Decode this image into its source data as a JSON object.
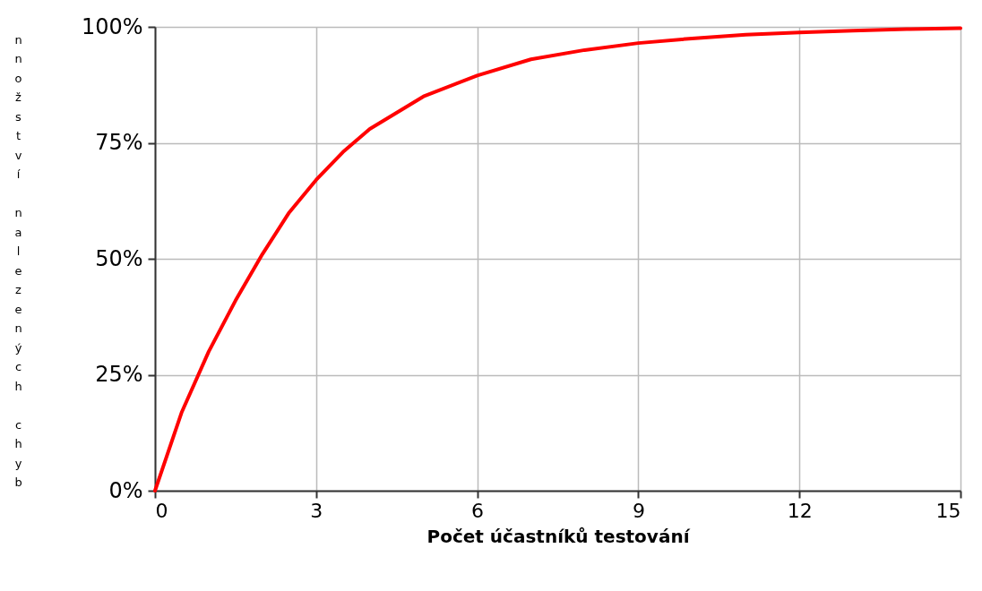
{
  "chart_data": {
    "type": "line",
    "xlabel": "Počet účastníků testování",
    "ylabel": "nnožství nalezených chyb",
    "x": [
      0,
      0.5,
      1,
      1.5,
      2,
      2.5,
      3,
      3.5,
      4,
      5,
      6,
      7,
      8,
      9,
      10,
      11,
      12,
      13,
      14,
      15
    ],
    "series": [
      {
        "color": "#ff0000",
        "values": [
          0,
          17,
          30,
          41,
          51,
          60,
          67,
          73,
          78,
          85,
          89.5,
          93,
          95,
          96.5,
          97.5,
          98.3,
          98.8,
          99.2,
          99.5,
          99.7
        ]
      }
    ],
    "xlim": [
      0,
      15
    ],
    "xticks": [
      0,
      3,
      6,
      9,
      12,
      15
    ],
    "ylim": [
      0,
      100
    ],
    "yticks": [
      {
        "value": 0,
        "label": "0%"
      },
      {
        "value": 25,
        "label": "25%"
      },
      {
        "value": 50,
        "label": "50%"
      },
      {
        "value": 75,
        "label": "75%"
      },
      {
        "value": 100,
        "label": "100%"
      }
    ],
    "grid": true,
    "line_style": "solid",
    "marker": "none"
  }
}
